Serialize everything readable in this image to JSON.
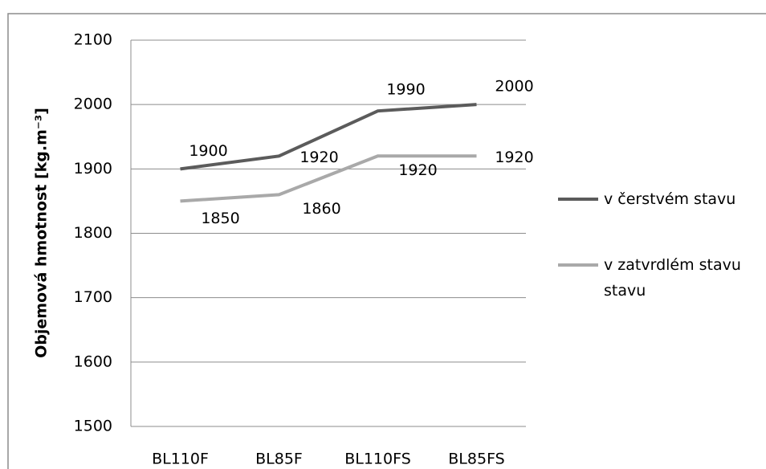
{
  "chart_data": {
    "type": "line",
    "y_label": "Objemová hmotnost [kg.m⁻³]",
    "categories": [
      "BL110F",
      "BL85F",
      "BL110FS",
      "BL85FS"
    ],
    "series": [
      {
        "name": "v čerstvém stavu",
        "color": "#5b5b5b",
        "values": [
          1900,
          1920,
          1990,
          2000
        ]
      },
      {
        "name": "v zatvrdlém stavu stavu",
        "color": "#a9a9a9",
        "values": [
          1850,
          1860,
          1920,
          1920
        ]
      }
    ],
    "ylim": [
      1500,
      2100
    ],
    "yticks": [
      1500,
      1600,
      1700,
      1800,
      1900,
      2000,
      2100
    ],
    "grid": true
  }
}
